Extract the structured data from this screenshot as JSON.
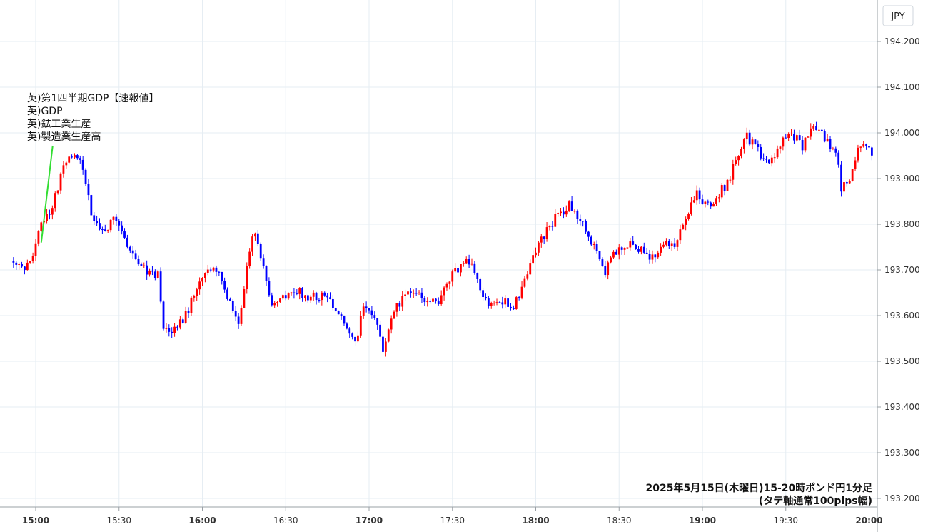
{
  "currency_label": "JPY",
  "events": [
    "英)第1四半期GDP【速報値】",
    "英)GDP",
    "英)鉱工業生産",
    "英)製造業生産高"
  ],
  "caption": [
    "2025年5月15日(木曜日)15-20時ポンド円1分足",
    "(タテ軸通常100pips幅)"
  ],
  "colors": {
    "up": "#ff0000",
    "down": "#0000ff",
    "event_line": "#33dd33",
    "grid": "#e6edf3"
  },
  "chart_data": {
    "type": "candlestick",
    "instrument": "ポンド円",
    "interval": "1分足",
    "x_range": [
      "14:52",
      "20:01"
    ],
    "ylim": [
      193.2,
      194.25
    ],
    "y_ticks": [
      "194.200",
      "194.100",
      "194.000",
      "193.900",
      "193.800",
      "193.700",
      "193.600",
      "193.500",
      "193.400",
      "193.300",
      "193.200"
    ],
    "x_ticks": [
      {
        "label": "15:00",
        "major": true
      },
      {
        "label": "15:30",
        "major": false
      },
      {
        "label": "16:00",
        "major": true
      },
      {
        "label": "16:30",
        "major": false
      },
      {
        "label": "17:00",
        "major": true
      },
      {
        "label": "17:30",
        "major": false
      },
      {
        "label": "18:00",
        "major": true
      },
      {
        "label": "18:30",
        "major": false
      },
      {
        "label": "19:00",
        "major": true
      },
      {
        "label": "19:30",
        "major": false
      },
      {
        "label": "20:00",
        "major": true
      }
    ],
    "event_marker": {
      "time": "15:02",
      "price": 193.76
    },
    "price_path": [
      [
        "14:52",
        193.72
      ],
      [
        "14:56",
        193.71
      ],
      [
        "14:59",
        193.74
      ],
      [
        "15:01",
        193.79
      ],
      [
        "15:03",
        193.8
      ],
      [
        "15:06",
        193.84
      ],
      [
        "15:10",
        193.93
      ],
      [
        "15:13",
        193.95
      ],
      [
        "15:16",
        193.94
      ],
      [
        "15:20",
        193.83
      ],
      [
        "15:24",
        193.78
      ],
      [
        "15:28",
        193.81
      ],
      [
        "15:32",
        193.77
      ],
      [
        "15:36",
        193.72
      ],
      [
        "15:40",
        193.7
      ],
      [
        "15:44",
        193.69
      ],
      [
        "15:46",
        193.56
      ],
      [
        "15:50",
        193.57
      ],
      [
        "15:54",
        193.6
      ],
      [
        "15:58",
        193.66
      ],
      [
        "16:03",
        193.7
      ],
      [
        "16:07",
        193.68
      ],
      [
        "16:10",
        193.63
      ],
      [
        "16:13",
        193.58
      ],
      [
        "16:16",
        193.7
      ],
      [
        "16:18",
        193.78
      ],
      [
        "16:20",
        193.76
      ],
      [
        "16:22",
        193.7
      ],
      [
        "16:25",
        193.63
      ],
      [
        "16:30",
        193.64
      ],
      [
        "16:35",
        193.65
      ],
      [
        "16:40",
        193.64
      ],
      [
        "16:45",
        193.64
      ],
      [
        "16:50",
        193.6
      ],
      [
        "16:55",
        193.54
      ],
      [
        "16:58",
        193.62
      ],
      [
        "17:02",
        193.6
      ],
      [
        "17:05",
        193.53
      ],
      [
        "17:08",
        193.6
      ],
      [
        "17:12",
        193.64
      ],
      [
        "17:16",
        193.66
      ],
      [
        "17:20",
        193.62
      ],
      [
        "17:25",
        193.63
      ],
      [
        "17:28",
        193.68
      ],
      [
        "17:32",
        193.7
      ],
      [
        "17:36",
        193.72
      ],
      [
        "17:40",
        193.66
      ],
      [
        "17:44",
        193.62
      ],
      [
        "17:48",
        193.63
      ],
      [
        "17:52",
        193.62
      ],
      [
        "17:56",
        193.67
      ],
      [
        "18:00",
        193.74
      ],
      [
        "18:04",
        193.79
      ],
      [
        "18:08",
        193.82
      ],
      [
        "18:12",
        193.84
      ],
      [
        "18:16",
        193.81
      ],
      [
        "18:20",
        193.76
      ],
      [
        "18:25",
        193.7
      ],
      [
        "18:30",
        193.75
      ],
      [
        "18:34",
        193.76
      ],
      [
        "18:38",
        193.74
      ],
      [
        "18:42",
        193.73
      ],
      [
        "18:46",
        193.76
      ],
      [
        "18:50",
        193.75
      ],
      [
        "18:54",
        193.82
      ],
      [
        "18:58",
        193.87
      ],
      [
        "19:02",
        193.84
      ],
      [
        "19:05",
        193.86
      ],
      [
        "19:09",
        193.89
      ],
      [
        "19:12",
        193.94
      ],
      [
        "19:16",
        193.99
      ],
      [
        "19:20",
        193.96
      ],
      [
        "19:24",
        193.93
      ],
      [
        "19:28",
        193.98
      ],
      [
        "19:32",
        194.0
      ],
      [
        "19:36",
        193.97
      ],
      [
        "19:40",
        194.01
      ],
      [
        "19:44",
        193.99
      ],
      [
        "19:48",
        193.96
      ],
      [
        "19:50",
        193.88
      ],
      [
        "19:53",
        193.9
      ],
      [
        "19:56",
        193.96
      ],
      [
        "19:59",
        193.98
      ],
      [
        "20:01",
        193.96
      ]
    ]
  }
}
